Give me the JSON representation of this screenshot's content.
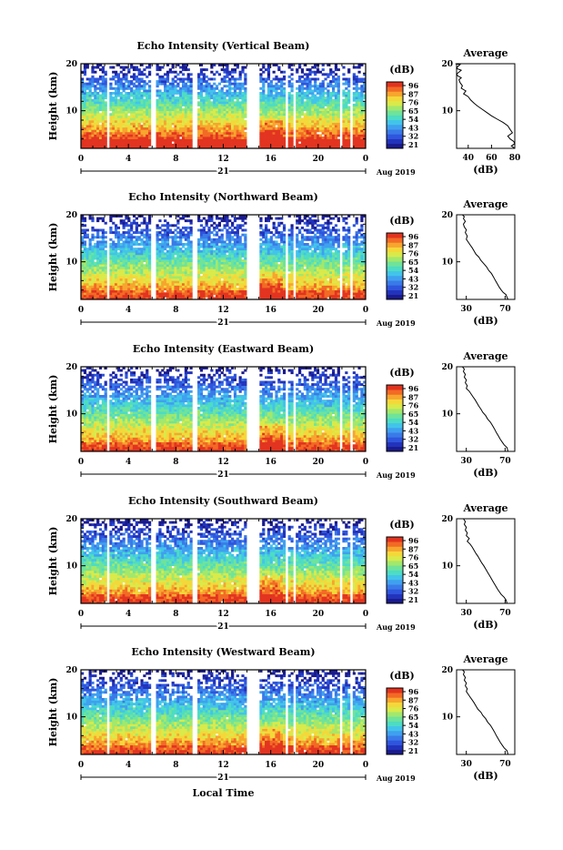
{
  "panels": [
    {
      "title": "Echo Intensity (Vertical Beam)",
      "ylabel": "Height (km)",
      "yticks": [
        "20",
        "10"
      ],
      "xticks": [
        "0",
        "4",
        "8",
        "12",
        "16",
        "20",
        "0"
      ],
      "day_label": "21",
      "month_label": "Aug 2019",
      "colorbar_title": "(dB)",
      "colorbar_ticks": [
        "96",
        "87",
        "76",
        "65",
        "54",
        "43",
        "32",
        "21"
      ],
      "avg_title": "Average",
      "avg_yticks": [
        "20",
        "10"
      ],
      "avg_xticks": [
        "40",
        "60",
        "80"
      ],
      "avg_xlabel": "(dB)",
      "avg_profile": [
        [
          29,
          20
        ],
        [
          33,
          19.8
        ],
        [
          31,
          19.4
        ],
        [
          30,
          19
        ],
        [
          34,
          18.6
        ],
        [
          32,
          18.2
        ],
        [
          30,
          17.8
        ],
        [
          31,
          17.4
        ],
        [
          34,
          17
        ],
        [
          32,
          16.6
        ],
        [
          33,
          16
        ],
        [
          35,
          15.3
        ],
        [
          34,
          14.8
        ],
        [
          38,
          14.2
        ],
        [
          36,
          13.6
        ],
        [
          40,
          13
        ],
        [
          42,
          12.3
        ],
        [
          45,
          11.6
        ],
        [
          48,
          11
        ],
        [
          52,
          10.3
        ],
        [
          56,
          9.6
        ],
        [
          60,
          8.9
        ],
        [
          65,
          8.2
        ],
        [
          70,
          7.5
        ],
        [
          74,
          6.8
        ],
        [
          76,
          6
        ],
        [
          78,
          5.3
        ],
        [
          74,
          4.6
        ],
        [
          76,
          4
        ],
        [
          79,
          3.5
        ],
        [
          80,
          3
        ],
        [
          77,
          2.5
        ],
        [
          80,
          2
        ]
      ]
    },
    {
      "title": "Echo Intensity (Northward Beam)",
      "ylabel": "Height (km)",
      "yticks": [
        "20",
        "10"
      ],
      "xticks": [
        "0",
        "4",
        "8",
        "12",
        "16",
        "20",
        "0"
      ],
      "day_label": "21",
      "month_label": "Aug 2019",
      "colorbar_title": "(dB)",
      "colorbar_ticks": [
        "96",
        "87",
        "76",
        "65",
        "54",
        "43",
        "32",
        "21"
      ],
      "avg_title": "Average",
      "avg_yticks": [
        "20",
        "10"
      ],
      "avg_xticks": [
        "30",
        "70"
      ],
      "avg_xlabel": "(dB)",
      "avg_profile": [
        [
          26,
          20
        ],
        [
          28,
          19.6
        ],
        [
          27,
          19.2
        ],
        [
          29,
          18.6
        ],
        [
          27,
          18
        ],
        [
          28,
          17.4
        ],
        [
          30,
          16.8
        ],
        [
          29,
          16.2
        ],
        [
          31,
          15.5
        ],
        [
          30,
          14.8
        ],
        [
          32,
          14.2
        ],
        [
          34,
          13.6
        ],
        [
          36,
          13
        ],
        [
          38,
          12.3
        ],
        [
          40,
          11.6
        ],
        [
          43,
          11
        ],
        [
          45,
          10.3
        ],
        [
          48,
          9.6
        ],
        [
          51,
          8.9
        ],
        [
          53,
          8.2
        ],
        [
          56,
          7.5
        ],
        [
          58,
          6.8
        ],
        [
          60,
          6
        ],
        [
          62,
          5.3
        ],
        [
          64,
          4.6
        ],
        [
          66,
          4
        ],
        [
          68,
          3.5
        ],
        [
          71,
          3
        ],
        [
          72,
          2.4
        ],
        [
          73,
          2
        ]
      ]
    },
    {
      "title": "Echo Intensity (Eastward Beam)",
      "ylabel": "Height (km)",
      "yticks": [
        "20",
        "10"
      ],
      "xticks": [
        "0",
        "4",
        "8",
        "12",
        "16",
        "20",
        "0"
      ],
      "day_label": "21",
      "month_label": "Aug 2019",
      "colorbar_title": "(dB)",
      "colorbar_ticks": [
        "96",
        "87",
        "76",
        "65",
        "54",
        "43",
        "32",
        "21"
      ],
      "avg_title": "Average",
      "avg_yticks": [
        "20",
        "10"
      ],
      "avg_xticks": [
        "30",
        "70"
      ],
      "avg_xlabel": "(dB)",
      "avg_profile": [
        [
          26,
          20
        ],
        [
          28,
          19.5
        ],
        [
          27,
          19
        ],
        [
          29,
          18.4
        ],
        [
          28,
          17.8
        ],
        [
          30,
          17.2
        ],
        [
          29,
          16.6
        ],
        [
          31,
          16
        ],
        [
          30,
          15.4
        ],
        [
          33,
          14.8
        ],
        [
          35,
          14.2
        ],
        [
          37,
          13.6
        ],
        [
          39,
          13
        ],
        [
          41,
          12.3
        ],
        [
          43,
          11.6
        ],
        [
          45,
          11
        ],
        [
          47,
          10.3
        ],
        [
          50,
          9.6
        ],
        [
          52,
          8.9
        ],
        [
          55,
          8.2
        ],
        [
          57,
          7.5
        ],
        [
          59,
          6.8
        ],
        [
          61,
          6
        ],
        [
          63,
          5.3
        ],
        [
          65,
          4.6
        ],
        [
          67,
          4
        ],
        [
          69,
          3.4
        ],
        [
          72,
          2.8
        ],
        [
          73,
          2
        ]
      ]
    },
    {
      "title": "Echo Intensity (Southward Beam)",
      "ylabel": "Height (km)",
      "yticks": [
        "20",
        "10"
      ],
      "xticks": [
        "0",
        "4",
        "8",
        "12",
        "16",
        "20",
        "0"
      ],
      "day_label": "21",
      "month_label": "Aug 2019",
      "colorbar_title": "(dB)",
      "colorbar_ticks": [
        "96",
        "87",
        "76",
        "65",
        "54",
        "43",
        "32",
        "21"
      ],
      "avg_title": "Average",
      "avg_yticks": [
        "20",
        "10"
      ],
      "avg_xticks": [
        "30",
        "70"
      ],
      "avg_xlabel": "(dB)",
      "avg_profile": [
        [
          27,
          20
        ],
        [
          29,
          19.4
        ],
        [
          28,
          18.8
        ],
        [
          30,
          18.2
        ],
        [
          29,
          17.6
        ],
        [
          31,
          17
        ],
        [
          30,
          16.4
        ],
        [
          33,
          15.8
        ],
        [
          31,
          15.2
        ],
        [
          34,
          14.6
        ],
        [
          36,
          14
        ],
        [
          38,
          13.3
        ],
        [
          40,
          12.6
        ],
        [
          42,
          12
        ],
        [
          44,
          11.3
        ],
        [
          46,
          10.6
        ],
        [
          48,
          10
        ],
        [
          50,
          9.3
        ],
        [
          52,
          8.6
        ],
        [
          54,
          7.9
        ],
        [
          56,
          7.2
        ],
        [
          58,
          6.5
        ],
        [
          60,
          5.8
        ],
        [
          62,
          5.1
        ],
        [
          64,
          4.5
        ],
        [
          66,
          3.9
        ],
        [
          69,
          3.3
        ],
        [
          71,
          2.7
        ],
        [
          72,
          2
        ]
      ]
    },
    {
      "title": "Echo Intensity (Westward Beam)",
      "ylabel": "Height (km)",
      "yticks": [
        "20",
        "10"
      ],
      "xticks": [
        "0",
        "4",
        "8",
        "12",
        "16",
        "20",
        "0"
      ],
      "day_label": "21",
      "month_label": "Aug 2019",
      "xlabel": "Local Time",
      "colorbar_title": "(dB)",
      "colorbar_ticks": [
        "96",
        "87",
        "76",
        "65",
        "54",
        "43",
        "32",
        "21"
      ],
      "avg_title": "Average",
      "avg_yticks": [
        "20",
        "10"
      ],
      "avg_xticks": [
        "30",
        "70"
      ],
      "avg_xlabel": "(dB)",
      "avg_profile": [
        [
          26,
          20
        ],
        [
          28,
          19.6
        ],
        [
          27,
          19
        ],
        [
          29,
          18.4
        ],
        [
          28,
          17.8
        ],
        [
          30,
          17.2
        ],
        [
          29,
          16.6
        ],
        [
          31,
          16
        ],
        [
          30,
          15.4
        ],
        [
          32,
          14.8
        ],
        [
          34,
          14.2
        ],
        [
          36,
          13.6
        ],
        [
          38,
          13
        ],
        [
          40,
          12.3
        ],
        [
          42,
          11.6
        ],
        [
          45,
          11
        ],
        [
          47,
          10.3
        ],
        [
          50,
          9.6
        ],
        [
          52,
          8.9
        ],
        [
          55,
          8.2
        ],
        [
          57,
          7.5
        ],
        [
          59,
          6.8
        ],
        [
          61,
          6
        ],
        [
          63,
          5.3
        ],
        [
          65,
          4.6
        ],
        [
          67,
          4
        ],
        [
          69,
          3.4
        ],
        [
          72,
          2.8
        ],
        [
          73,
          2
        ]
      ]
    }
  ],
  "chart_data": [
    {
      "type": "heatmap",
      "title": "Echo Intensity (Vertical Beam)",
      "xlabel": "",
      "ylabel": "Height (km)",
      "xlim": [
        0,
        24
      ],
      "ylim": [
        2,
        20
      ],
      "colorbar_range": [
        21,
        96
      ],
      "units": "dB",
      "data_gaps_hours": [
        [
          2.1,
          2.5
        ],
        [
          5.9,
          6.3
        ],
        [
          9.4,
          9.8
        ],
        [
          13.9,
          15.1
        ],
        [
          17.2,
          17.5
        ],
        [
          17.9,
          18.2
        ],
        [
          21.8,
          22.1
        ],
        [
          22.7,
          23.0
        ]
      ]
    },
    {
      "type": "line",
      "title": "Average",
      "xlabel": "(dB)",
      "ylabel": "",
      "xlim": [
        30,
        80
      ],
      "ylim": [
        2,
        20
      ]
    },
    {
      "type": "heatmap",
      "title": "Echo Intensity (Northward Beam)",
      "xlabel": "",
      "ylabel": "Height (km)",
      "xlim": [
        0,
        24
      ],
      "ylim": [
        2,
        20
      ],
      "colorbar_range": [
        21,
        96
      ],
      "units": "dB",
      "data_gaps_hours": [
        [
          2.1,
          2.5
        ],
        [
          5.9,
          6.3
        ],
        [
          9.4,
          9.8
        ],
        [
          13.9,
          15.1
        ],
        [
          17.2,
          17.5
        ],
        [
          17.9,
          18.2
        ],
        [
          21.8,
          22.1
        ],
        [
          22.7,
          23.0
        ]
      ]
    },
    {
      "type": "line",
      "title": "Average",
      "xlabel": "(dB)",
      "ylabel": "",
      "xlim": [
        20,
        80
      ],
      "ylim": [
        2,
        20
      ]
    },
    {
      "type": "heatmap",
      "title": "Echo Intensity (Eastward Beam)",
      "xlabel": "",
      "ylabel": "Height (km)",
      "xlim": [
        0,
        24
      ],
      "ylim": [
        2,
        20
      ],
      "colorbar_range": [
        21,
        96
      ],
      "units": "dB",
      "data_gaps_hours": [
        [
          2.1,
          2.5
        ],
        [
          5.9,
          6.3
        ],
        [
          9.4,
          9.8
        ],
        [
          13.9,
          15.1
        ],
        [
          17.2,
          17.5
        ],
        [
          17.9,
          18.2
        ],
        [
          21.8,
          22.1
        ],
        [
          22.7,
          23.0
        ]
      ]
    },
    {
      "type": "line",
      "title": "Average",
      "xlabel": "(dB)",
      "ylabel": "",
      "xlim": [
        20,
        80
      ],
      "ylim": [
        2,
        20
      ]
    },
    {
      "type": "heatmap",
      "title": "Echo Intensity (Southward Beam)",
      "xlabel": "",
      "ylabel": "Height (km)",
      "xlim": [
        0,
        24
      ],
      "ylim": [
        2,
        20
      ],
      "colorbar_range": [
        21,
        96
      ],
      "units": "dB",
      "data_gaps_hours": [
        [
          2.1,
          2.5
        ],
        [
          5.9,
          6.3
        ],
        [
          9.4,
          9.8
        ],
        [
          13.9,
          15.1
        ],
        [
          17.2,
          17.5
        ],
        [
          17.9,
          18.2
        ],
        [
          21.8,
          22.1
        ],
        [
          22.7,
          23.0
        ]
      ]
    },
    {
      "type": "line",
      "title": "Average",
      "xlabel": "(dB)",
      "ylabel": "",
      "xlim": [
        20,
        80
      ],
      "ylim": [
        2,
        20
      ]
    },
    {
      "type": "heatmap",
      "title": "Echo Intensity (Westward Beam)",
      "xlabel": "Local Time",
      "ylabel": "Height (km)",
      "xlim": [
        0,
        24
      ],
      "ylim": [
        2,
        20
      ],
      "colorbar_range": [
        21,
        96
      ],
      "units": "dB",
      "data_gaps_hours": [
        [
          2.1,
          2.5
        ],
        [
          5.9,
          6.3
        ],
        [
          9.4,
          9.8
        ],
        [
          13.9,
          15.1
        ],
        [
          17.2,
          17.5
        ],
        [
          17.9,
          18.2
        ],
        [
          21.8,
          22.1
        ],
        [
          22.7,
          23.0
        ]
      ]
    },
    {
      "type": "line",
      "title": "Average",
      "xlabel": "(dB)",
      "ylabel": "",
      "xlim": [
        20,
        80
      ],
      "ylim": [
        2,
        20
      ]
    }
  ]
}
